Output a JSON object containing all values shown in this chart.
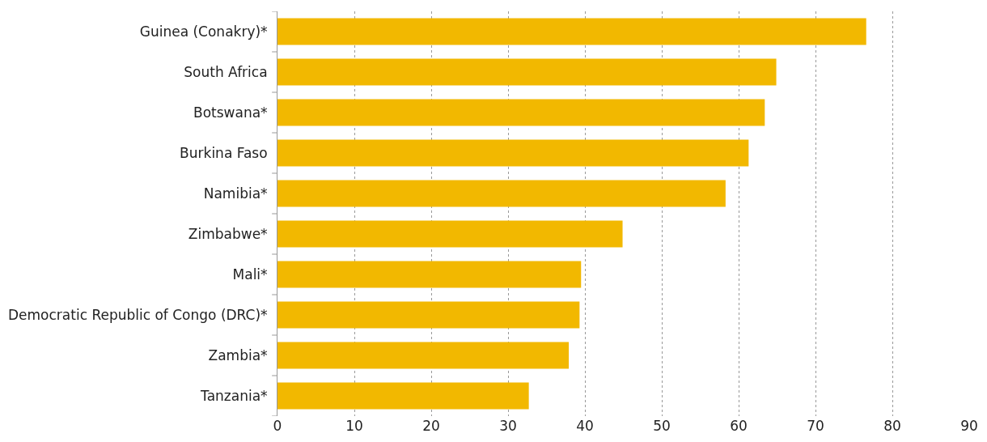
{
  "chart_data": {
    "type": "bar",
    "orientation": "horizontal",
    "categories": [
      "Guinea (Conakry)*",
      "South Africa",
      "Botswana*",
      "Burkina Faso",
      "Namibia*",
      "Zimbabwe*",
      "Mali*",
      "Democratic Republic of Congo (DRC)*",
      "Zambia*",
      "Tanzania*"
    ],
    "values": [
      76.6,
      64.9,
      63.4,
      61.3,
      58.3,
      44.9,
      39.5,
      39.3,
      37.9,
      32.7
    ],
    "color": "#f2b800",
    "xlim": [
      0,
      90
    ],
    "xticks": [
      0,
      10,
      20,
      30,
      40,
      50,
      60,
      70,
      80,
      90
    ],
    "grid": "x"
  }
}
